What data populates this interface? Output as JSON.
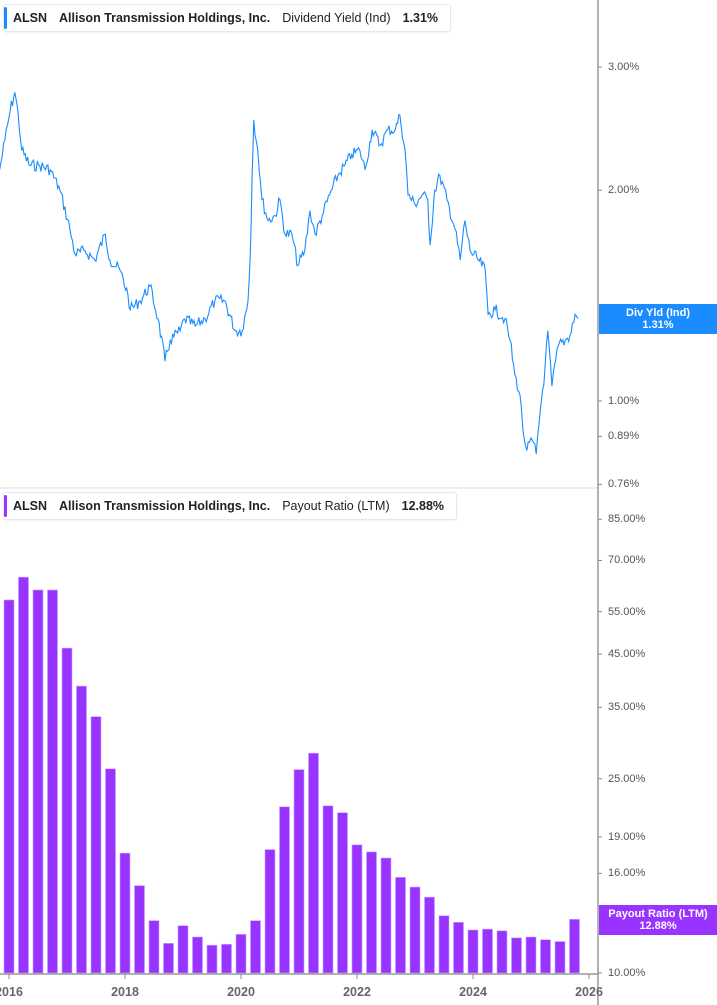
{
  "colors": {
    "yield": "#1a8cff",
    "payout": "#9933ff",
    "axis": "#999999"
  },
  "top_legend": {
    "ticker": "ALSN",
    "company": "Allison Transmission Holdings, Inc.",
    "metric": "Dividend Yield (Ind)",
    "value": "1.31%"
  },
  "bottom_legend": {
    "ticker": "ALSN",
    "company": "Allison Transmission Holdings, Inc.",
    "metric": "Payout Ratio (LTM)",
    "value": "12.88%"
  },
  "top_tag": {
    "label": "Div Yld (Ind)",
    "value": "1.31%"
  },
  "bottom_tag": {
    "label": "Payout Ratio (LTM)",
    "value": "12.88%"
  },
  "x_ticks": [
    "2016",
    "2018",
    "2020",
    "2022",
    "2024",
    "2026"
  ],
  "chart_data": [
    {
      "type": "line",
      "series_label": "Dividend Yield (Ind)",
      "y_scale": "log",
      "y_ticks": [
        "3.00%",
        "2.00%",
        "1.00%",
        "0.89%",
        "0.76%"
      ],
      "y_tick_values": [
        3.0,
        2.0,
        1.0,
        0.89,
        0.76
      ],
      "x_unit": "year",
      "points": [
        [
          2015.84,
          2.14
        ],
        [
          2015.93,
          2.36
        ],
        [
          2016.02,
          2.6
        ],
        [
          2016.1,
          2.76
        ],
        [
          2016.16,
          2.56
        ],
        [
          2016.22,
          2.28
        ],
        [
          2016.36,
          2.17
        ],
        [
          2016.53,
          2.17
        ],
        [
          2016.71,
          2.14
        ],
        [
          2016.88,
          2.0
        ],
        [
          2017.05,
          1.76
        ],
        [
          2017.14,
          1.62
        ],
        [
          2017.31,
          1.64
        ],
        [
          2017.48,
          1.59
        ],
        [
          2017.66,
          1.73
        ],
        [
          2017.74,
          1.59
        ],
        [
          2017.91,
          1.54
        ],
        [
          2018.05,
          1.42
        ],
        [
          2018.09,
          1.35
        ],
        [
          2018.26,
          1.39
        ],
        [
          2018.43,
          1.46
        ],
        [
          2018.57,
          1.31
        ],
        [
          2018.69,
          1.14
        ],
        [
          2018.78,
          1.22
        ],
        [
          2018.95,
          1.26
        ],
        [
          2019.03,
          1.31
        ],
        [
          2019.21,
          1.28
        ],
        [
          2019.38,
          1.31
        ],
        [
          2019.55,
          1.39
        ],
        [
          2019.72,
          1.39
        ],
        [
          2019.9,
          1.26
        ],
        [
          2020.02,
          1.26
        ],
        [
          2020.12,
          1.39
        ],
        [
          2020.16,
          1.62
        ],
        [
          2020.19,
          2.07
        ],
        [
          2020.22,
          2.52
        ],
        [
          2020.29,
          2.28
        ],
        [
          2020.36,
          1.94
        ],
        [
          2020.47,
          1.81
        ],
        [
          2020.59,
          1.84
        ],
        [
          2020.67,
          1.94
        ],
        [
          2020.76,
          1.73
        ],
        [
          2020.88,
          1.73
        ],
        [
          2020.98,
          1.56
        ],
        [
          2021.1,
          1.64
        ],
        [
          2021.19,
          1.87
        ],
        [
          2021.28,
          1.73
        ],
        [
          2021.4,
          1.84
        ],
        [
          2021.53,
          1.97
        ],
        [
          2021.67,
          2.1
        ],
        [
          2021.79,
          2.17
        ],
        [
          2021.91,
          2.25
        ],
        [
          2022.05,
          2.28
        ],
        [
          2022.14,
          2.14
        ],
        [
          2022.26,
          2.44
        ],
        [
          2022.4,
          2.32
        ],
        [
          2022.53,
          2.44
        ],
        [
          2022.66,
          2.44
        ],
        [
          2022.74,
          2.56
        ],
        [
          2022.83,
          2.28
        ],
        [
          2022.88,
          1.97
        ],
        [
          2023.0,
          1.91
        ],
        [
          2023.12,
          1.97
        ],
        [
          2023.22,
          1.94
        ],
        [
          2023.26,
          1.67
        ],
        [
          2023.34,
          2.0
        ],
        [
          2023.43,
          2.1
        ],
        [
          2023.55,
          1.94
        ],
        [
          2023.69,
          1.76
        ],
        [
          2023.78,
          1.59
        ],
        [
          2023.86,
          1.81
        ],
        [
          2023.95,
          1.64
        ],
        [
          2024.09,
          1.59
        ],
        [
          2024.21,
          1.54
        ],
        [
          2024.26,
          1.33
        ],
        [
          2024.38,
          1.35
        ],
        [
          2024.55,
          1.31
        ],
        [
          2024.64,
          1.22
        ],
        [
          2024.72,
          1.09
        ],
        [
          2024.81,
          1.02
        ],
        [
          2024.86,
          0.91
        ],
        [
          2024.93,
          0.85
        ],
        [
          2025.02,
          0.88
        ],
        [
          2025.09,
          0.84
        ],
        [
          2025.16,
          0.97
        ],
        [
          2025.24,
          1.11
        ],
        [
          2025.29,
          1.26
        ],
        [
          2025.36,
          1.05
        ],
        [
          2025.47,
          1.2
        ],
        [
          2025.59,
          1.22
        ],
        [
          2025.67,
          1.24
        ],
        [
          2025.76,
          1.33
        ],
        [
          2025.81,
          1.31
        ]
      ]
    },
    {
      "type": "bar",
      "series_label": "Payout Ratio (LTM)",
      "y_scale": "log",
      "y_ticks": [
        "85.00%",
        "70.00%",
        "55.00%",
        "45.00%",
        "35.00%",
        "25.00%",
        "19.00%",
        "16.00%",
        "10.00%"
      ],
      "y_tick_values": [
        85,
        70,
        55,
        45,
        35,
        25,
        19,
        16,
        10
      ],
      "x_start": 2016.0,
      "x_step_years": 0.25,
      "values": [
        58.1,
        64.7,
        60.9,
        60.9,
        46.3,
        38.7,
        33.5,
        26.2,
        17.6,
        15.1,
        12.8,
        11.5,
        12.5,
        11.85,
        11.4,
        11.45,
        12.0,
        12.8,
        17.9,
        21.9,
        26.1,
        28.2,
        22.0,
        21.3,
        18.3,
        17.7,
        17.2,
        15.7,
        15.0,
        14.3,
        13.1,
        12.7,
        12.25,
        12.3,
        12.2,
        11.8,
        11.85,
        11.7,
        11.6,
        12.88
      ]
    }
  ]
}
